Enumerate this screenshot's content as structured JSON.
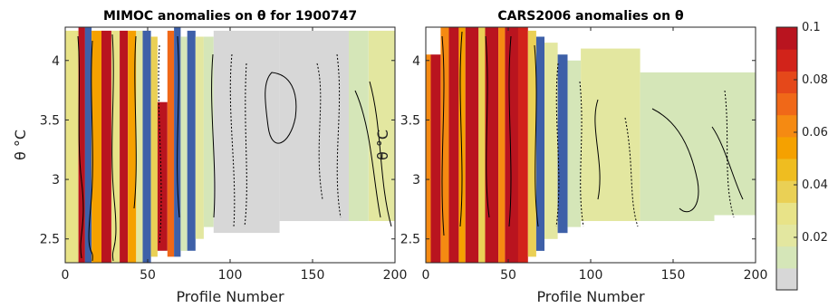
{
  "chart_data": [
    {
      "type": "heatmap",
      "title": "MIMOC anomalies on θ  for 1900747",
      "xlabel": "Profile Number",
      "ylabel": "θ °C",
      "xlim": [
        0,
        200
      ],
      "ylim": [
        2.3,
        4.28
      ],
      "xticks": [
        "0",
        "50",
        "100",
        "150",
        "200"
      ],
      "yticks": [
        "2.5",
        "3",
        "3.5",
        "4"
      ],
      "in_plot_label": "θ °C",
      "contours": "solid and dotted black contour lines",
      "columns": [
        {
          "x0": 0,
          "x1": 8,
          "y0": 2.3,
          "y1": 4.25,
          "value": 0.03
        },
        {
          "x0": 8,
          "x1": 12,
          "y0": 2.3,
          "y1": 4.28,
          "value": 0.1
        },
        {
          "x0": 12,
          "x1": 16,
          "y0": 2.3,
          "y1": 4.28,
          "value": "negative"
        },
        {
          "x0": 16,
          "x1": 22,
          "y0": 2.3,
          "y1": 4.25,
          "value": 0.05
        },
        {
          "x0": 22,
          "x1": 28,
          "y0": 2.3,
          "y1": 4.25,
          "value": 0.1
        },
        {
          "x0": 28,
          "x1": 33,
          "y0": 2.3,
          "y1": 4.25,
          "value": 0.03
        },
        {
          "x0": 33,
          "x1": 38,
          "y0": 2.3,
          "y1": 4.25,
          "value": 0.1
        },
        {
          "x0": 38,
          "x1": 43,
          "y0": 2.3,
          "y1": 4.25,
          "value": 0.05
        },
        {
          "x0": 43,
          "x1": 47,
          "y0": 2.3,
          "y1": 4.25,
          "value": 0.02
        },
        {
          "x0": 47,
          "x1": 52,
          "y0": 2.3,
          "y1": 4.25,
          "value": "negative"
        },
        {
          "x0": 52,
          "x1": 56,
          "y0": 2.35,
          "y1": 4.2,
          "value": 0.04
        },
        {
          "x0": 56,
          "x1": 62,
          "y0": 2.4,
          "y1": 3.65,
          "value": 0.1
        },
        {
          "x0": 62,
          "x1": 66,
          "y0": 2.35,
          "y1": 4.25,
          "value": 0.07
        },
        {
          "x0": 66,
          "x1": 70,
          "y0": 2.35,
          "y1": 4.28,
          "value": "negative"
        },
        {
          "x0": 70,
          "x1": 74,
          "y0": 2.4,
          "y1": 4.2,
          "value": 0.01
        },
        {
          "x0": 74,
          "x1": 79,
          "y0": 2.4,
          "y1": 4.25,
          "value": "negative"
        },
        {
          "x0": 79,
          "x1": 84,
          "y0": 2.5,
          "y1": 4.2,
          "value": 0.02
        },
        {
          "x0": 84,
          "x1": 90,
          "y0": 2.6,
          "y1": 4.2,
          "value": 0.01
        },
        {
          "x0": 90,
          "x1": 130,
          "y0": 2.55,
          "y1": 4.25,
          "value": 0.005
        },
        {
          "x0": 130,
          "x1": 172,
          "y0": 2.65,
          "y1": 4.25,
          "value": 0.005
        },
        {
          "x0": 172,
          "x1": 184,
          "y0": 2.65,
          "y1": 4.25,
          "value": 0.015
        },
        {
          "x0": 184,
          "x1": 200,
          "y0": 2.65,
          "y1": 4.25,
          "value": 0.02
        }
      ]
    },
    {
      "type": "heatmap",
      "title": "CARS2006 anomalies on θ",
      "xlabel": "Profile Number",
      "ylabel": "",
      "xlim": [
        0,
        200
      ],
      "ylim": [
        2.3,
        4.28
      ],
      "xticks": [
        "0",
        "50",
        "100",
        "150",
        "200"
      ],
      "yticks": [
        "2.5",
        "3",
        "3.5",
        "4"
      ],
      "contours": "solid and dotted black contour lines",
      "columns": [
        {
          "x0": 0,
          "x1": 3,
          "y0": 2.3,
          "y1": 4.05,
          "value": 0.06
        },
        {
          "x0": 3,
          "x1": 9,
          "y0": 2.3,
          "y1": 4.05,
          "value": 0.1
        },
        {
          "x0": 9,
          "x1": 14,
          "y0": 2.3,
          "y1": 4.28,
          "value": 0.06
        },
        {
          "x0": 14,
          "x1": 20,
          "y0": 2.3,
          "y1": 4.28,
          "value": 0.1
        },
        {
          "x0": 20,
          "x1": 24,
          "y0": 2.3,
          "y1": 4.28,
          "value": 0.05
        },
        {
          "x0": 24,
          "x1": 32,
          "y0": 2.3,
          "y1": 4.28,
          "value": 0.1
        },
        {
          "x0": 32,
          "x1": 36,
          "y0": 2.3,
          "y1": 4.28,
          "value": 0.04
        },
        {
          "x0": 36,
          "x1": 44,
          "y0": 2.3,
          "y1": 4.28,
          "value": 0.1
        },
        {
          "x0": 44,
          "x1": 48,
          "y0": 2.3,
          "y1": 4.28,
          "value": 0.06
        },
        {
          "x0": 48,
          "x1": 56,
          "y0": 2.3,
          "y1": 4.28,
          "value": 0.1
        },
        {
          "x0": 56,
          "x1": 62,
          "y0": 2.3,
          "y1": 4.28,
          "value": 0.09
        },
        {
          "x0": 62,
          "x1": 67,
          "y0": 2.35,
          "y1": 4.25,
          "value": 0.04
        },
        {
          "x0": 67,
          "x1": 72,
          "y0": 2.4,
          "y1": 4.2,
          "value": "negative"
        },
        {
          "x0": 72,
          "x1": 80,
          "y0": 2.5,
          "y1": 4.15,
          "value": 0.02
        },
        {
          "x0": 80,
          "x1": 86,
          "y0": 2.55,
          "y1": 4.05,
          "value": "negative"
        },
        {
          "x0": 86,
          "x1": 94,
          "y0": 2.6,
          "y1": 4.0,
          "value": 0.015
        },
        {
          "x0": 94,
          "x1": 130,
          "y0": 2.65,
          "y1": 4.1,
          "value": 0.02
        },
        {
          "x0": 130,
          "x1": 175,
          "y0": 2.65,
          "y1": 3.9,
          "value": 0.01
        },
        {
          "x0": 175,
          "x1": 200,
          "y0": 2.7,
          "y1": 3.9,
          "value": 0.015
        }
      ]
    }
  ],
  "colorbar": {
    "ticks": [
      "0.02",
      "0.04",
      "0.06",
      "0.08",
      "0.1"
    ],
    "ymin": 0,
    "ymax": 0.1,
    "colors": [
      "#d7d7d7",
      "#d5e6b8",
      "#e3e7a0",
      "#e8e388",
      "#ead055",
      "#efbd20",
      "#f5a100",
      "#f58a12",
      "#f06818",
      "#e5481a",
      "#d2231a",
      "#b9141f"
    ]
  },
  "colors": {
    "negative": "#3e60a8",
    "nodata": "#ffffff"
  }
}
